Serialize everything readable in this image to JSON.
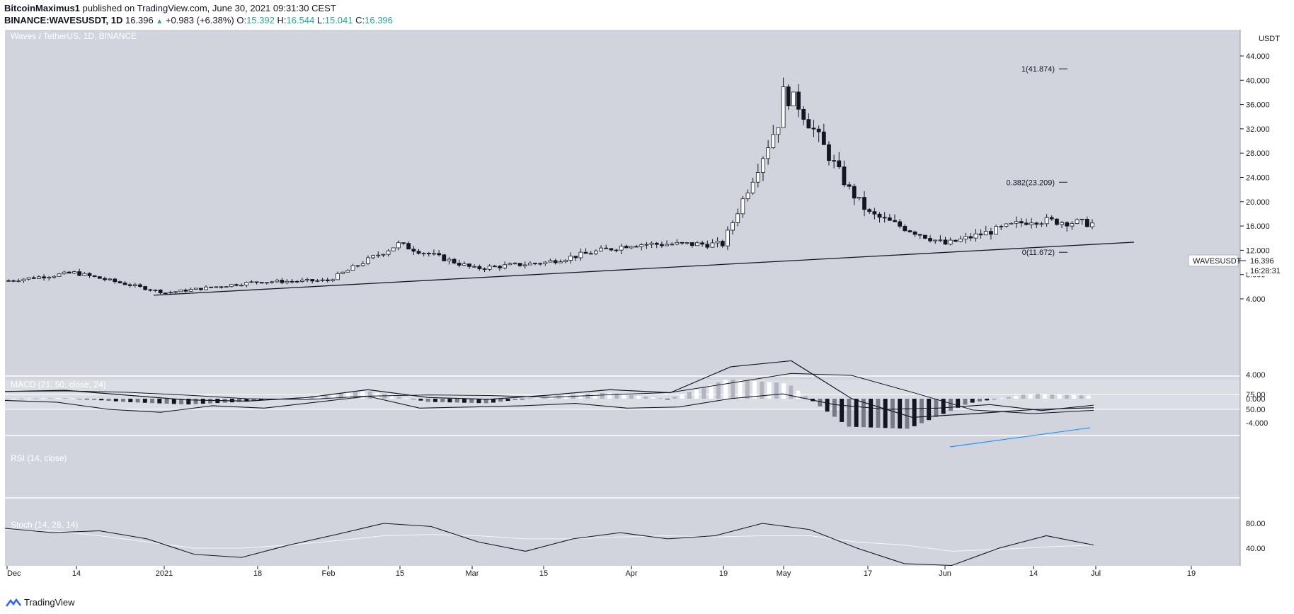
{
  "header": {
    "author": "BitcoinMaximus1",
    "published": "published on TradingView.com, June 30, 2021 09:31:30 CEST",
    "symbol": "BINANCE:WAVESUSDT, 1D",
    "price": "16.396",
    "change": "+0.983 (+6.38%)",
    "o_label": "O:",
    "o_value": "15.392",
    "h_label": "H:",
    "h_value": "16.544",
    "l_label": "L:",
    "l_value": "15.041",
    "c_label": "C:",
    "c_value": "16.396"
  },
  "footer": {
    "brand": "TradingView"
  },
  "colors": {
    "pane_bg": "#d1d4dc",
    "axis_bg": "#ffffff",
    "accent": "#26a69a",
    "line": "#131722"
  },
  "chart_data": {
    "type": "candlestick",
    "title": "Waves / TetherUS, 1D, BINANCE",
    "currency": "USDT",
    "ylim": [
      0,
      48
    ],
    "y_ticks": [
      "44.000",
      "40.000",
      "36.000",
      "32.000",
      "28.000",
      "24.000",
      "20.000",
      "16.000",
      "12.000",
      "8.000",
      "4.000"
    ],
    "x_ticks": [
      "Dec",
      "14",
      "2021",
      "18",
      "Feb",
      "15",
      "Mar",
      "15",
      "Apr",
      "19",
      "May",
      "17",
      "Jun",
      "14",
      "Jul",
      "19"
    ],
    "price_label": "WAVESUSDT",
    "last_price": "16.396",
    "countdown": "16:28:31",
    "candles_summary": [
      {
        "x": "Dec",
        "close": 7.0
      },
      {
        "x": "14",
        "close": 8.3
      },
      {
        "x": "2021",
        "close": 5.0
      },
      {
        "x": "18",
        "close": 6.8
      },
      {
        "x": "Feb",
        "close": 7.0
      },
      {
        "x": "15",
        "close": 13.0
      },
      {
        "x": "Mar",
        "close": 9.0
      },
      {
        "x": "15",
        "close": 10.0
      },
      {
        "x": "Apr",
        "close": 13.0
      },
      {
        "x": "19",
        "close": 13.0
      },
      {
        "x": "May",
        "close": 35.0
      },
      {
        "x": "17",
        "close": 18.0
      },
      {
        "x": "Jun",
        "close": 13.0
      },
      {
        "x": "14",
        "close": 17.0
      },
      {
        "x": "Jul",
        "close": 16.4
      }
    ],
    "fib_levels": [
      {
        "label": "1(41.874)",
        "value": 41.874
      },
      {
        "label": "0.382(23.209)",
        "value": 23.209
      },
      {
        "label": "0(11.672)",
        "value": 11.672
      }
    ],
    "trendline": {
      "from": {
        "x": "2021",
        "y": 4.6
      },
      "to": {
        "x": "Jul",
        "y": 14.5
      }
    },
    "macd": {
      "label": "MACD (21, 50, close, 24)",
      "y_ticks": [
        "4.000",
        "0.000",
        "-4.000"
      ],
      "macd_line": [
        1.2,
        1.4,
        0.6,
        -0.2,
        -0.4,
        0.2,
        1.5,
        0.2,
        -0.1,
        0.6,
        1.5,
        1.0,
        5.3,
        6.3,
        0,
        -3.1,
        -2.5,
        -1.8,
        -1.5
      ]
    },
    "rsi": {
      "label": "RSI (14, close)",
      "y_ticks": [
        "75.00",
        "50.00"
      ],
      "values": [
        65,
        62,
        50,
        45,
        56,
        52,
        62,
        72,
        52,
        54,
        56,
        60,
        52,
        54,
        68,
        76,
        58,
        50,
        52,
        58,
        48,
        57
      ]
    },
    "stoch": {
      "label": "Stoch (14, 28, 14)",
      "y_ticks": [
        "80.00",
        "40.00"
      ],
      "k": [
        72,
        65,
        68,
        55,
        30,
        25,
        45,
        62,
        80,
        75,
        50,
        35,
        55,
        65,
        55,
        60,
        80,
        70,
        40,
        15,
        12,
        40,
        60,
        45
      ],
      "d": [
        70,
        68,
        60,
        50,
        40,
        40,
        45,
        52,
        60,
        62,
        60,
        55,
        55,
        58,
        60,
        58,
        60,
        60,
        50,
        45,
        35,
        38,
        42,
        45
      ]
    }
  }
}
